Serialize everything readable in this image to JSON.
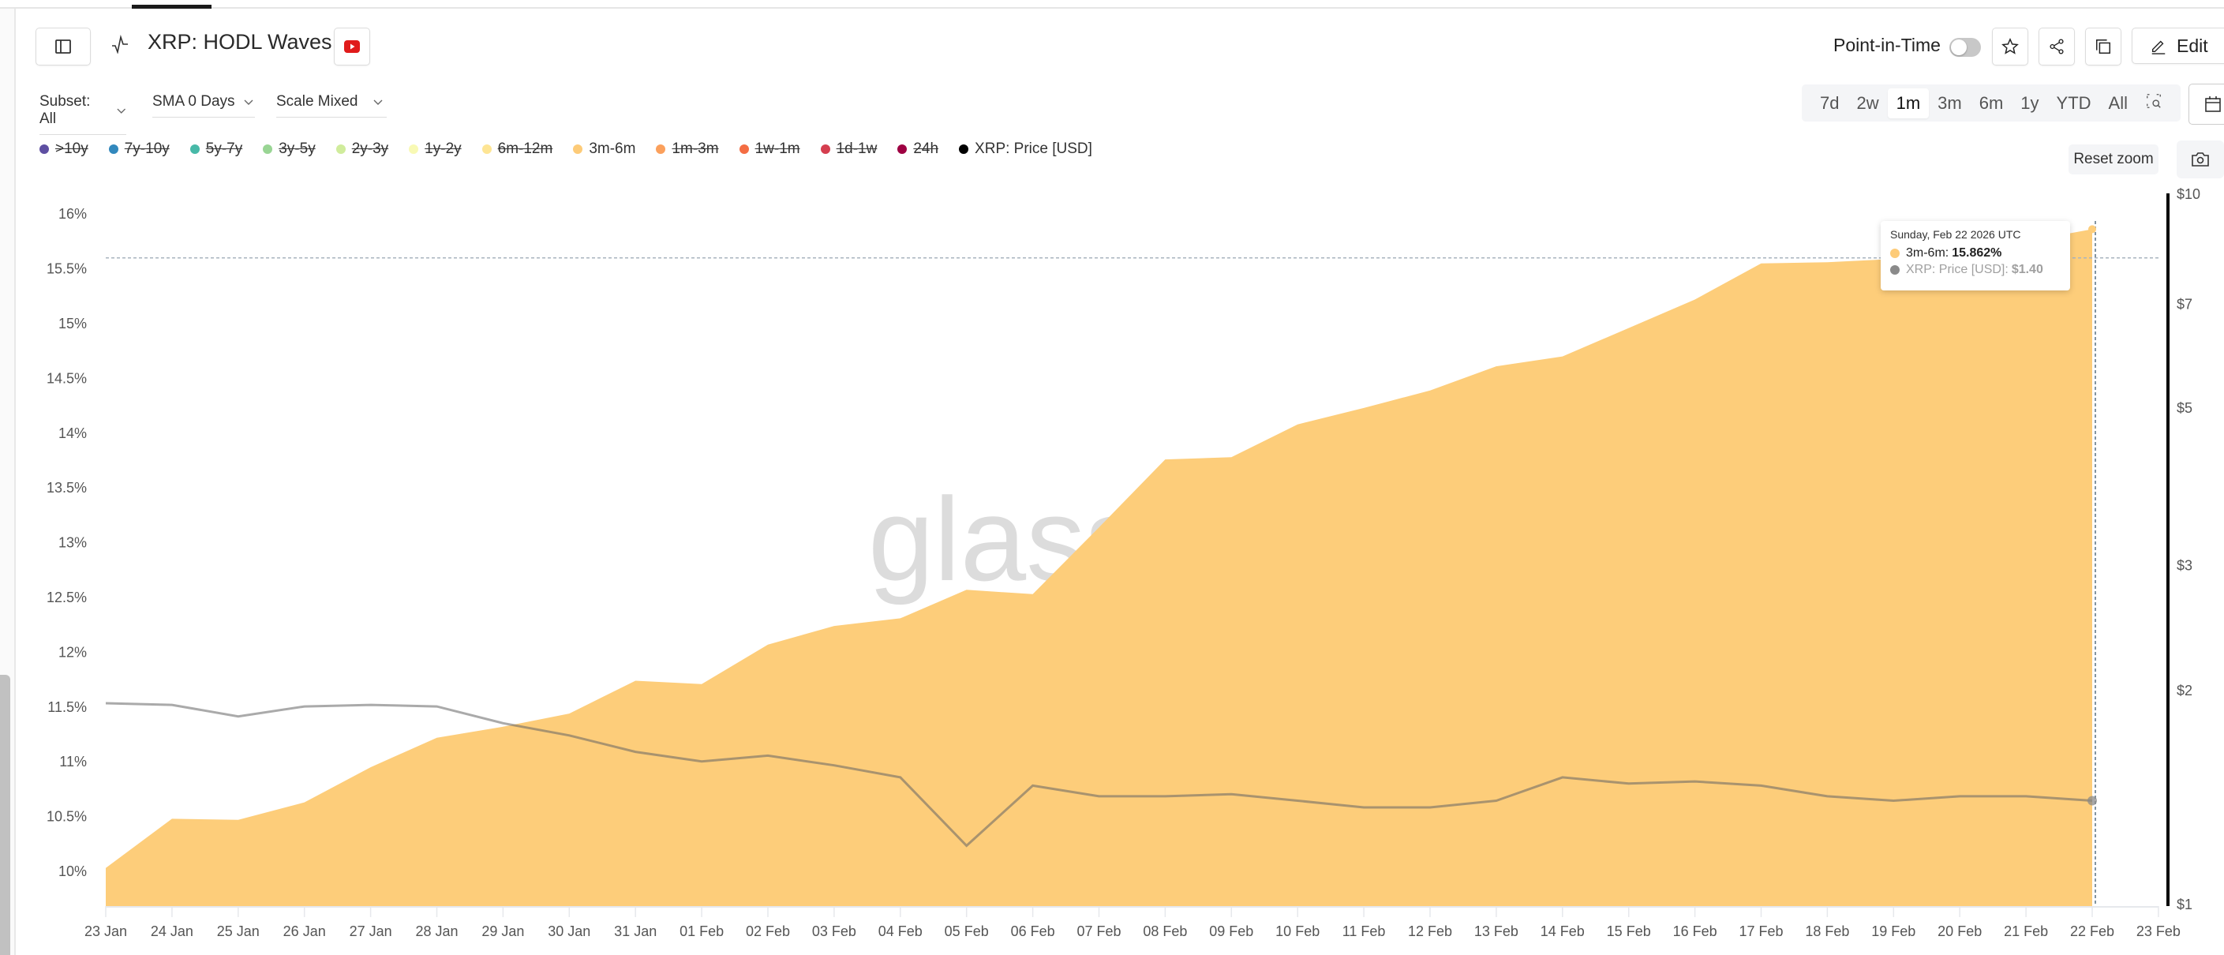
{
  "header": {
    "title": "XRP: HODL Waves",
    "point_in_time_label": "Point-in-Time",
    "edit_label": "Edit"
  },
  "controls": {
    "subset": "Subset: All",
    "sma": "SMA 0 Days",
    "scale": "Scale Mixed"
  },
  "ranges": [
    {
      "label": "7d",
      "active": false
    },
    {
      "label": "2w",
      "active": false
    },
    {
      "label": "1m",
      "active": true
    },
    {
      "label": "3m",
      "active": false
    },
    {
      "label": "6m",
      "active": false
    },
    {
      "label": "1y",
      "active": false
    },
    {
      "label": "YTD",
      "active": false
    },
    {
      "label": "All",
      "active": false
    }
  ],
  "reset_zoom_label": "Reset zoom",
  "legend": [
    {
      "label": ">10y",
      "color": "#5e4fa2",
      "enabled": false
    },
    {
      "label": "7y-10y",
      "color": "#3288bd",
      "enabled": false
    },
    {
      "label": "5y-7y",
      "color": "#47b9a8",
      "enabled": false
    },
    {
      "label": "3y-5y",
      "color": "#99d594",
      "enabled": false
    },
    {
      "label": "2y-3y",
      "color": "#d0ec9c",
      "enabled": false
    },
    {
      "label": "1y-2y",
      "color": "#f8f9b4",
      "enabled": false
    },
    {
      "label": "6m-12m",
      "color": "#fee594",
      "enabled": false
    },
    {
      "label": "3m-6m",
      "color": "#fdcb78",
      "enabled": true
    },
    {
      "label": "1m-3m",
      "color": "#fba05c",
      "enabled": false
    },
    {
      "label": "1w-1m",
      "color": "#f46d43",
      "enabled": false
    },
    {
      "label": "1d-1w",
      "color": "#d53e4f",
      "enabled": false
    },
    {
      "label": "24h",
      "color": "#9e0142",
      "enabled": false
    },
    {
      "label": "XRP: Price [USD]",
      "color": "#000000",
      "enabled": true
    }
  ],
  "tooltip": {
    "date": "Sunday, Feb 22 2026 UTC",
    "series_label": "3m-6m: ",
    "series_value": "15.862%",
    "price_label": "XRP: Price [USD]: ",
    "price_value": "$1.40"
  },
  "watermark": "glass",
  "colors": {
    "area": "#fdcd7a",
    "price_line": "#a8a8a8",
    "price_line_over_area": "#a88a55",
    "accent_youtube": "#e01b1b"
  },
  "chart_data": {
    "type": "area",
    "title": "XRP: HODL Waves",
    "x": [
      "23 Jan",
      "24 Jan",
      "25 Jan",
      "26 Jan",
      "27 Jan",
      "28 Jan",
      "29 Jan",
      "30 Jan",
      "31 Jan",
      "01 Feb",
      "02 Feb",
      "03 Feb",
      "04 Feb",
      "05 Feb",
      "06 Feb",
      "07 Feb",
      "08 Feb",
      "09 Feb",
      "10 Feb",
      "11 Feb",
      "12 Feb",
      "13 Feb",
      "14 Feb",
      "15 Feb",
      "16 Feb",
      "17 Feb",
      "18 Feb",
      "19 Feb",
      "20 Feb",
      "21 Feb",
      "22 Feb"
    ],
    "x_ticks": [
      "23 Jan",
      "24 Jan",
      "25 Jan",
      "26 Jan",
      "27 Jan",
      "28 Jan",
      "29 Jan",
      "30 Jan",
      "31 Jan",
      "01 Feb",
      "02 Feb",
      "03 Feb",
      "04 Feb",
      "05 Feb",
      "06 Feb",
      "07 Feb",
      "08 Feb",
      "09 Feb",
      "10 Feb",
      "11 Feb",
      "12 Feb",
      "13 Feb",
      "14 Feb",
      "15 Feb",
      "16 Feb",
      "17 Feb",
      "18 Feb",
      "19 Feb",
      "20 Feb",
      "21 Feb",
      "22 Feb",
      "23 Feb"
    ],
    "series": [
      {
        "name": "3m-6m",
        "axis": "left",
        "type": "area",
        "unit": "%",
        "values": [
          10.03,
          10.48,
          10.47,
          10.63,
          10.95,
          11.22,
          11.32,
          11.44,
          11.74,
          11.71,
          12.07,
          12.24,
          12.31,
          12.57,
          12.53,
          13.14,
          13.76,
          13.78,
          14.08,
          14.23,
          14.39,
          14.61,
          14.7,
          14.96,
          15.22,
          15.55,
          15.56,
          15.59,
          15.64,
          15.75,
          15.862
        ]
      },
      {
        "name": "XRP: Price [USD]",
        "axis": "right",
        "type": "line",
        "unit": "$",
        "values": [
          1.92,
          1.91,
          1.84,
          1.9,
          1.91,
          1.9,
          1.8,
          1.73,
          1.64,
          1.59,
          1.62,
          1.57,
          1.51,
          1.21,
          1.47,
          1.42,
          1.42,
          1.43,
          1.4,
          1.37,
          1.37,
          1.4,
          1.51,
          1.48,
          1.49,
          1.47,
          1.42,
          1.4,
          1.42,
          1.42,
          1.4
        ]
      }
    ],
    "left_axis": {
      "ticks": [
        "10%",
        "10.5%",
        "11%",
        "11.5%",
        "12%",
        "12.5%",
        "13%",
        "13.5%",
        "14%",
        "14.5%",
        "15%",
        "15.5%",
        "16%"
      ],
      "range": [
        9.7,
        16.1
      ]
    },
    "right_axis": {
      "scale": "log",
      "ticks": [
        "$1",
        "$2",
        "$3",
        "$5",
        "$7",
        "$10"
      ],
      "tick_values": [
        1,
        2,
        3,
        5,
        7,
        10
      ],
      "range": [
        1,
        10
      ]
    },
    "crosshair": {
      "x": "22 Feb",
      "y_value": 15.862
    },
    "grid": false,
    "legend_position": "top"
  }
}
